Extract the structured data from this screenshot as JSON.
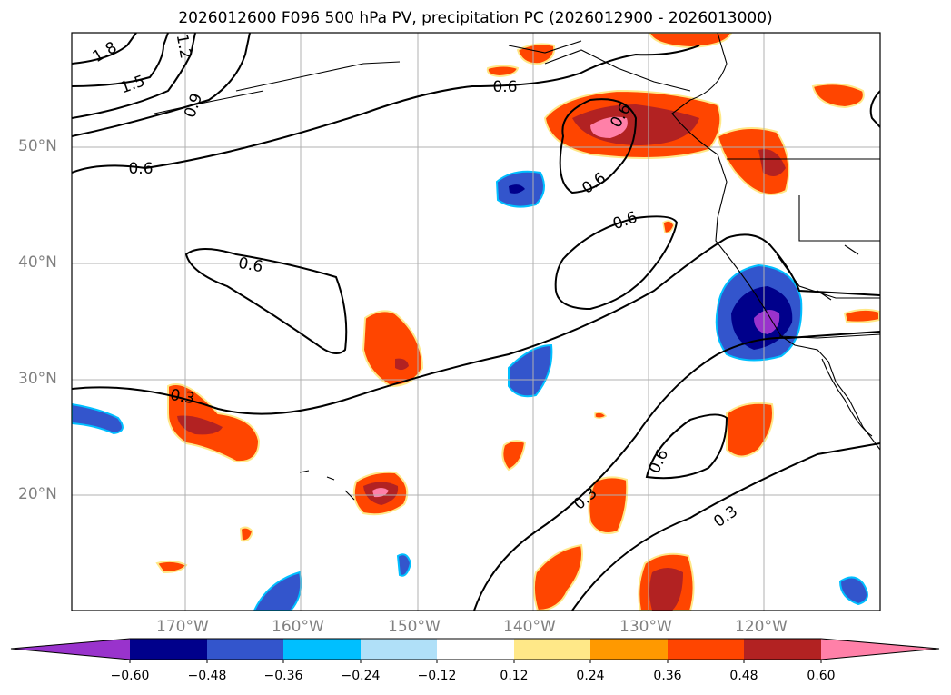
{
  "title": "2026012600 F096 500 hPa PV, precipitation PC (2026012900 - 2026013000)",
  "map": {
    "extent": {
      "lon": [
        -180,
        -110
      ],
      "lat": [
        10,
        60
      ]
    },
    "grid": true,
    "lat_ticks": [
      "50°N",
      "40°N",
      "30°N",
      "20°N"
    ],
    "lon_ticks": [
      "170°W",
      "160°W",
      "150°W",
      "140°W",
      "130°W",
      "120°W"
    ],
    "contour_labels": [
      "1.8",
      "1.5",
      "1.2",
      "0.9",
      "0.6",
      "0.6",
      "0.6",
      "0.6",
      "0.6",
      "0.6",
      "0.6",
      "0.3",
      "0.3",
      "0.3",
      "0.6"
    ],
    "contour_color": "#000000"
  },
  "colorbar": {
    "ticks": [
      "−0.60",
      "−0.48",
      "−0.36",
      "−0.24",
      "−0.12",
      "0.12",
      "0.24",
      "0.36",
      "0.48",
      "0.60"
    ],
    "colors": [
      "#9933cc",
      "#00008b",
      "#3355cc",
      "#00bfff",
      "#b0e0f8",
      "#ffffff",
      "#ffe888",
      "#ff9900",
      "#ff4500",
      "#b22222",
      "#ff80a8"
    ],
    "extend": "both"
  }
}
